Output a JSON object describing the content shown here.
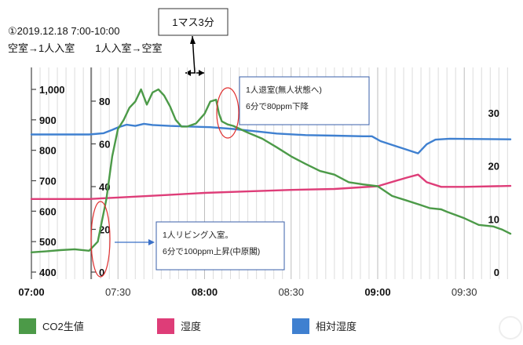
{
  "header": {
    "title_line1": "①2019.12.18 7:00-10:00",
    "title_line2": "空室→1人入室　　1人入室→空室",
    "scale_box": "1マス3分"
  },
  "annotations": {
    "exit_line1": "1人退室(無人状態へ)",
    "exit_line2": "6分で80ppm下降",
    "enter_line1": "1人リビング入室。",
    "enter_line2": "6分で100ppm上昇(中原閣)"
  },
  "chart_data": {
    "type": "line",
    "x_start": "07:00",
    "x_end": "09:50",
    "x_ticks": [
      {
        "label": "07:00",
        "minute": 0,
        "bold": true
      },
      {
        "label": "07:30",
        "minute": 30,
        "bold": false
      },
      {
        "label": "08:00",
        "minute": 60,
        "bold": true
      },
      {
        "label": "08:30",
        "minute": 90,
        "bold": false
      },
      {
        "label": "09:00",
        "minute": 120,
        "bold": true
      },
      {
        "label": "09:30",
        "minute": 150,
        "bold": false
      }
    ],
    "grid_interval_minutes": 3,
    "axes": {
      "co2": {
        "ticks": [
          "1,000",
          "900",
          "800",
          "700",
          "600",
          "500",
          "400"
        ],
        "ylim": [
          400,
          1050
        ]
      },
      "temperature_left": {
        "ticks": [
          "80",
          "60",
          "40",
          "20",
          "0"
        ],
        "ylim": [
          0,
          90
        ]
      },
      "right": {
        "ticks": [
          "30",
          "20",
          "10",
          "0"
        ],
        "ylim": [
          0,
          35
        ]
      }
    },
    "series": [
      {
        "name": "CO2生値",
        "color": "#4c9a48",
        "axis": "co2",
        "points": [
          [
            0,
            465
          ],
          [
            5,
            468
          ],
          [
            10,
            472
          ],
          [
            15,
            475
          ],
          [
            20,
            470
          ],
          [
            23,
            500
          ],
          [
            26,
            640
          ],
          [
            28,
            780
          ],
          [
            30,
            870
          ],
          [
            32,
            900
          ],
          [
            34,
            940
          ],
          [
            36,
            960
          ],
          [
            38,
            1000
          ],
          [
            40,
            950
          ],
          [
            42,
            990
          ],
          [
            44,
            1000
          ],
          [
            46,
            980
          ],
          [
            48,
            945
          ],
          [
            50,
            900
          ],
          [
            52,
            878
          ],
          [
            54,
            878
          ],
          [
            57,
            888
          ],
          [
            60,
            920
          ],
          [
            62,
            960
          ],
          [
            64,
            966
          ],
          [
            65,
            920
          ],
          [
            66,
            895
          ],
          [
            68,
            885
          ],
          [
            70,
            880
          ],
          [
            75,
            858
          ],
          [
            80,
            838
          ],
          [
            85,
            810
          ],
          [
            90,
            780
          ],
          [
            95,
            755
          ],
          [
            100,
            732
          ],
          [
            105,
            720
          ],
          [
            110,
            695
          ],
          [
            115,
            688
          ],
          [
            120,
            682
          ],
          [
            125,
            650
          ],
          [
            130,
            635
          ],
          [
            135,
            620
          ],
          [
            138,
            610
          ],
          [
            142,
            606
          ],
          [
            144,
            598
          ],
          [
            150,
            577
          ],
          [
            155,
            555
          ],
          [
            160,
            550
          ],
          [
            163,
            540
          ],
          [
            166,
            526
          ]
        ]
      },
      {
        "name": "湿度",
        "color": "#de3d78",
        "axis": "co2",
        "points": [
          [
            0,
            640
          ],
          [
            20,
            640
          ],
          [
            30,
            645
          ],
          [
            45,
            652
          ],
          [
            60,
            660
          ],
          [
            75,
            665
          ],
          [
            90,
            670
          ],
          [
            105,
            673
          ],
          [
            120,
            682
          ],
          [
            130,
            710
          ],
          [
            134,
            720
          ],
          [
            137,
            695
          ],
          [
            142,
            680
          ],
          [
            150,
            680
          ],
          [
            166,
            683
          ]
        ]
      },
      {
        "name": "相対湿度",
        "color": "#3f80d0",
        "axis": "co2",
        "points": [
          [
            0,
            852
          ],
          [
            10,
            852
          ],
          [
            20,
            852
          ],
          [
            25,
            856
          ],
          [
            28,
            867
          ],
          [
            30,
            875
          ],
          [
            33,
            884
          ],
          [
            36,
            880
          ],
          [
            39,
            887
          ],
          [
            42,
            883
          ],
          [
            48,
            880
          ],
          [
            55,
            878
          ],
          [
            62,
            876
          ],
          [
            70,
            870
          ],
          [
            78,
            862
          ],
          [
            85,
            855
          ],
          [
            95,
            850
          ],
          [
            105,
            848
          ],
          [
            115,
            846
          ],
          [
            118,
            846
          ],
          [
            121,
            830
          ],
          [
            134,
            790
          ],
          [
            137,
            820
          ],
          [
            140,
            835
          ],
          [
            145,
            838
          ],
          [
            155,
            837
          ],
          [
            166,
            836
          ]
        ]
      }
    ]
  },
  "legend": [
    {
      "label": "CO2生値",
      "color": "#4c9a48"
    },
    {
      "label": "湿度",
      "color": "#de3d78"
    },
    {
      "label": "相対湿度",
      "color": "#3f80d0"
    }
  ]
}
